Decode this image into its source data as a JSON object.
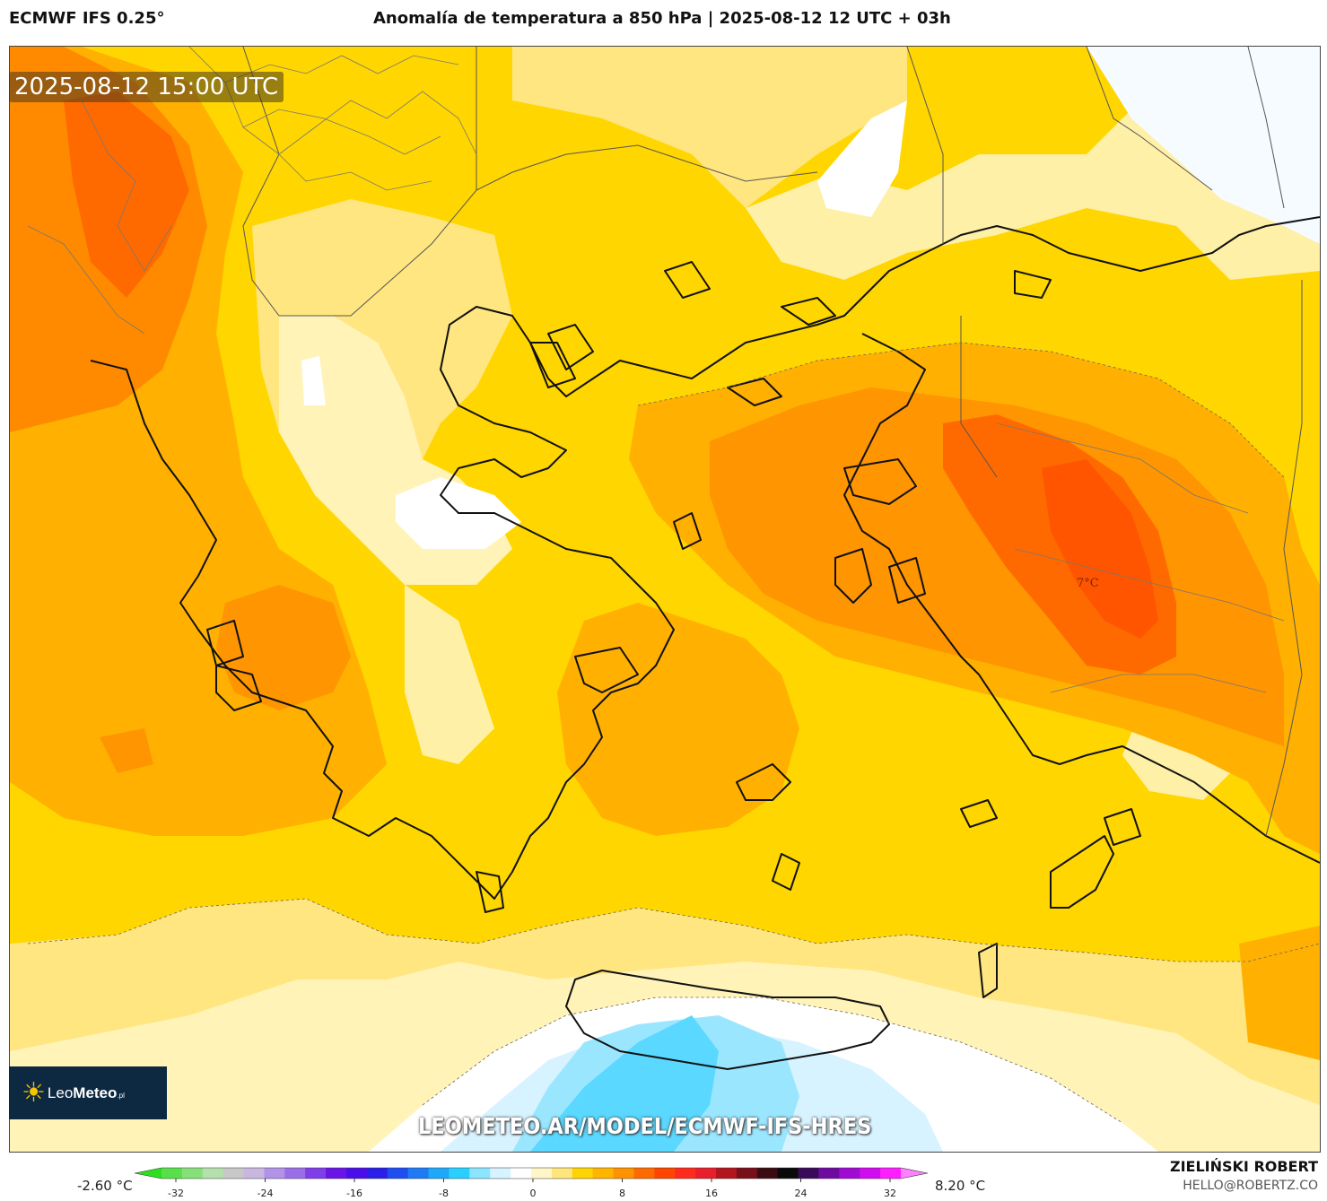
{
  "header": {
    "model": "ECMWF IFS 0.25°",
    "title": "Anomalía de temperatura a 850 hPa | 2025-08-12 12 UTC + 03h"
  },
  "map": {
    "valid_time": "2025-08-12 15:00 UTC",
    "max_label": "7°C",
    "url": "LEOMETEO.AR/MODEL/ECMWF-IFS-HRES"
  },
  "logo": {
    "icon": "sun-icon",
    "prefix": "Leo",
    "name": "Meteo",
    "suffix": ".pl"
  },
  "colorbar": {
    "min_label": "-2.60 °C",
    "max_label": "8.20 °C",
    "ticks": [
      "-32",
      "-24",
      "-16",
      "-8",
      "0",
      "8",
      "16",
      "24",
      "32"
    ],
    "colors": [
      "#2de01f",
      "#58e04a",
      "#86e07a",
      "#b5e0ab",
      "#c8c8c8",
      "#c9b7e0",
      "#b193e8",
      "#9a6ee8",
      "#7f3ee8",
      "#6a14e8",
      "#4a0fe8",
      "#2a1ee8",
      "#1e4ef0",
      "#1e7af5",
      "#1ea8fa",
      "#28d0ff",
      "#8ae6ff",
      "#d7f3ff",
      "#ffffff",
      "#fff6c8",
      "#ffe67a",
      "#ffd400",
      "#ffb400",
      "#ff9200",
      "#ff6a00",
      "#ff4500",
      "#ff2a1e",
      "#e81e2a",
      "#b4141e",
      "#78101a",
      "#3a0c12",
      "#0a0a0a",
      "#3a0a5a",
      "#6e0aa0",
      "#a00ad2",
      "#d20af0",
      "#ff1eff",
      "#ff80ff"
    ]
  },
  "credits": {
    "author": "ZIELIŃSKI ROBERT",
    "email": "HELLO@ROBERTZ.CO"
  }
}
